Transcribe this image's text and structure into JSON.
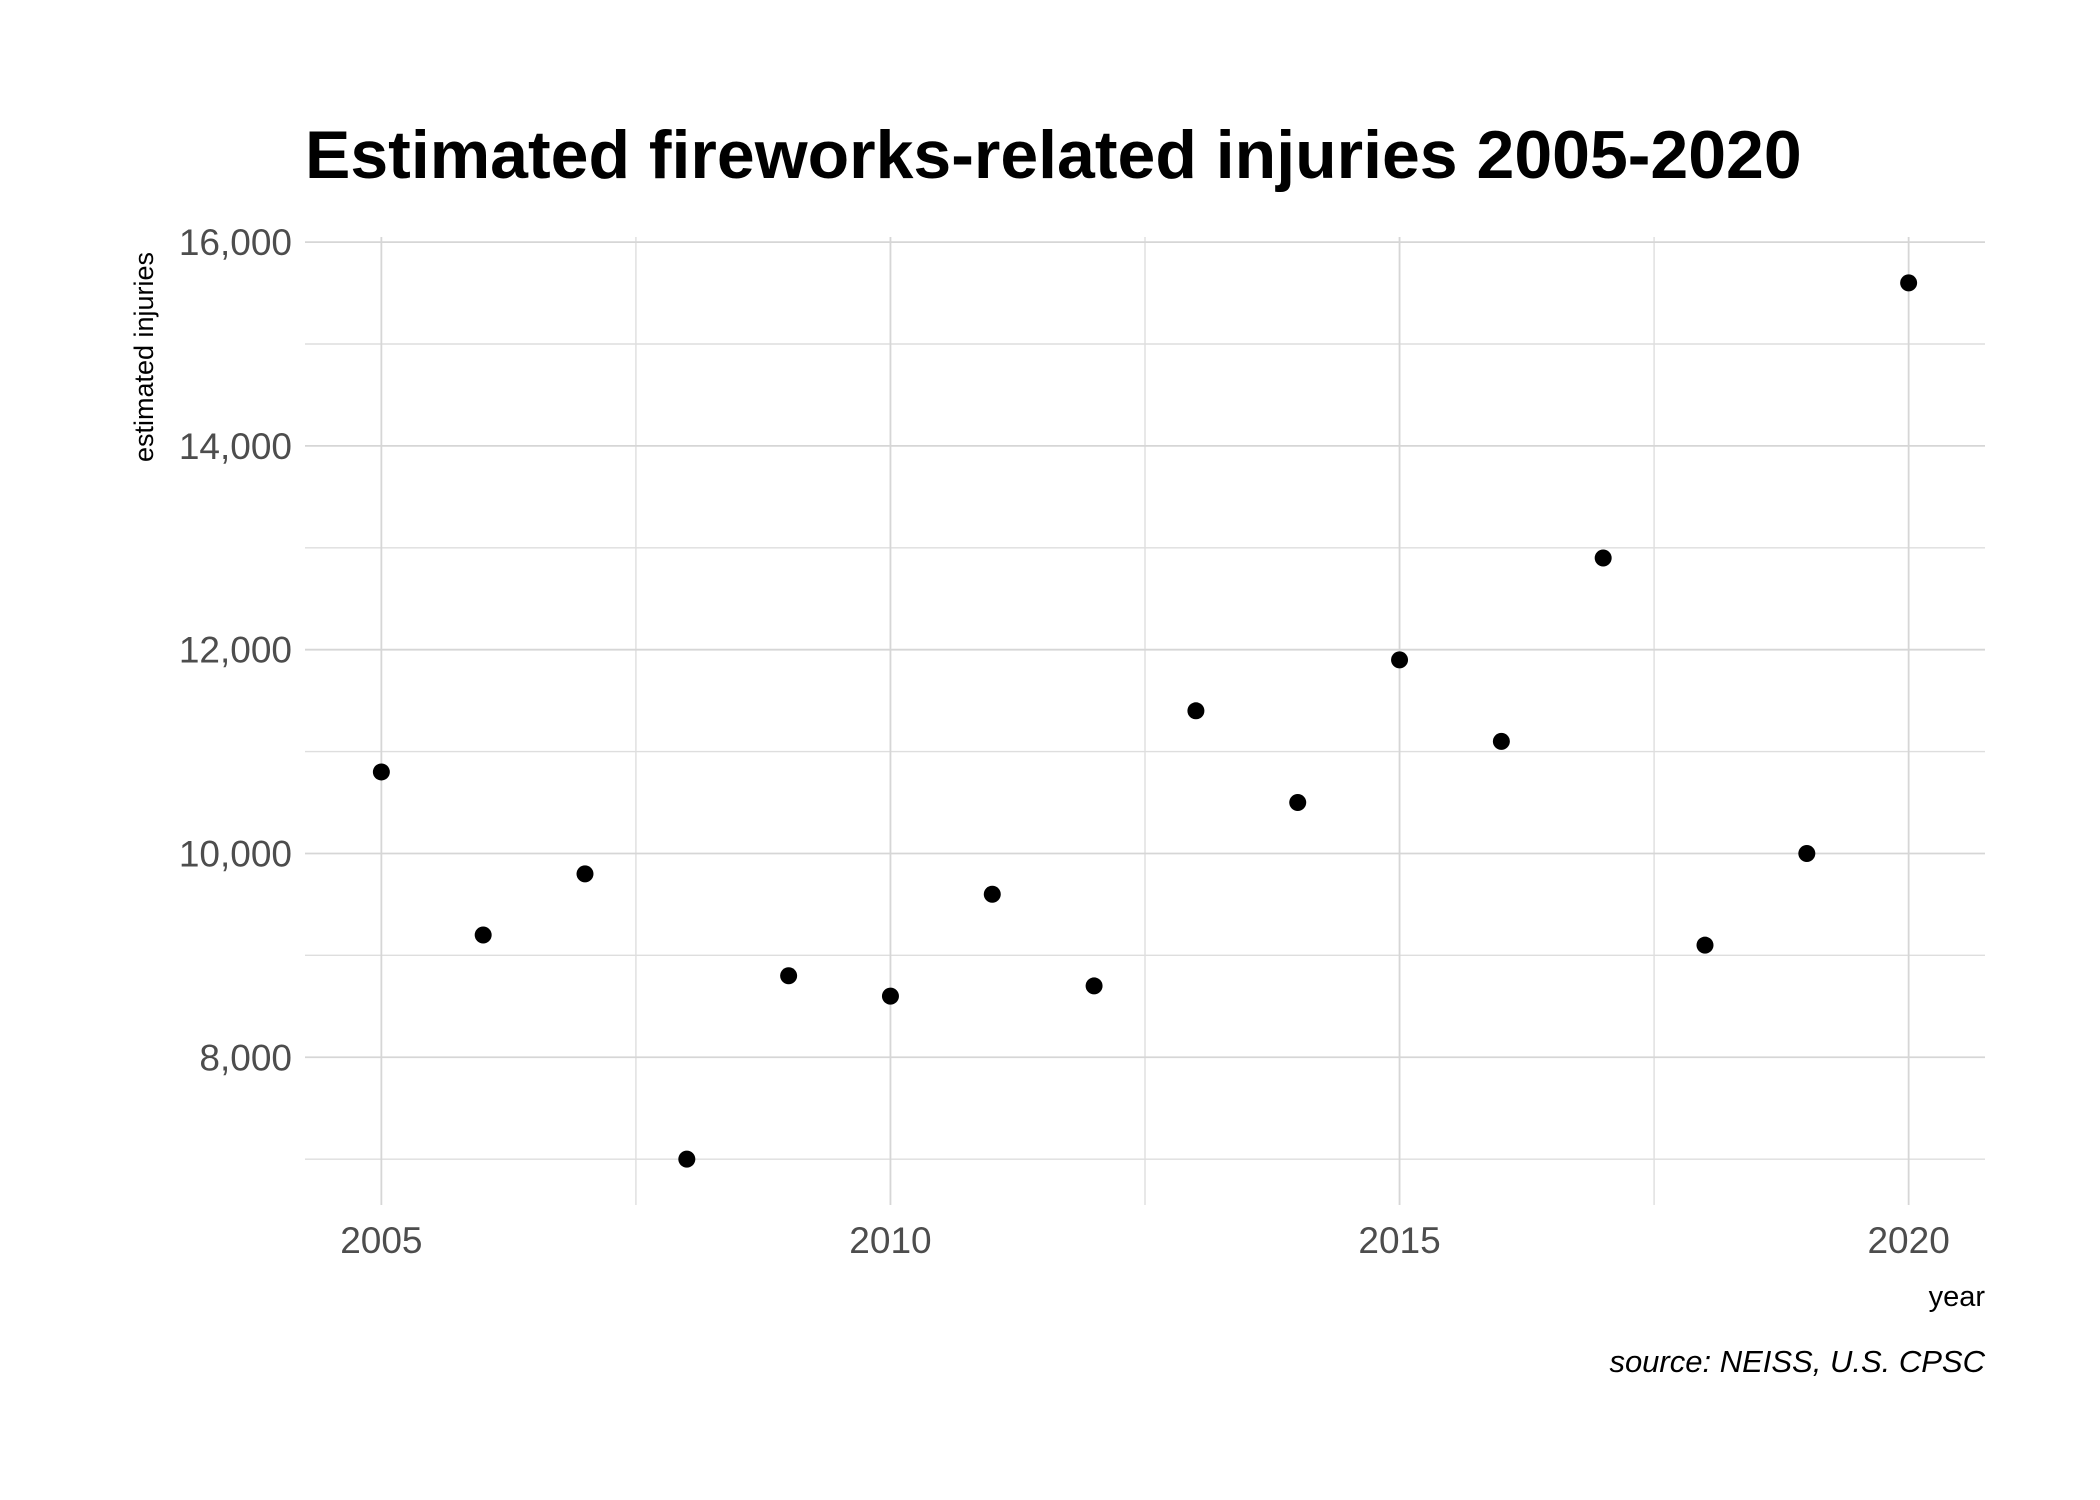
{
  "chart_data": {
    "type": "scatter",
    "title": "Estimated fireworks-related injuries 2005-2020",
    "xlabel": "year",
    "ylabel": "estimated injuries",
    "caption": "source: NEISS, U.S. CPSC",
    "x": [
      2005,
      2006,
      2007,
      2008,
      2009,
      2010,
      2011,
      2012,
      2013,
      2014,
      2015,
      2016,
      2017,
      2018,
      2019,
      2020
    ],
    "y": [
      10800,
      9200,
      9800,
      7000,
      8800,
      8600,
      9600,
      8700,
      11400,
      10500,
      11900,
      11100,
      12900,
      9100,
      10000,
      15600
    ],
    "xlim": [
      2004.25,
      2020.75
    ],
    "ylim": [
      6550,
      16050
    ],
    "x_ticks": [
      2005,
      2010,
      2015,
      2020
    ],
    "x_tick_labels": [
      "2005",
      "2010",
      "2015",
      "2020"
    ],
    "y_ticks": [
      8000,
      10000,
      12000,
      14000,
      16000
    ],
    "y_tick_labels": [
      "8,000",
      "10,000",
      "12,000",
      "14,000",
      "16,000"
    ],
    "grid": true,
    "legend": "none",
    "point_color": "#000000",
    "grid_color": "#d6d6d6"
  }
}
